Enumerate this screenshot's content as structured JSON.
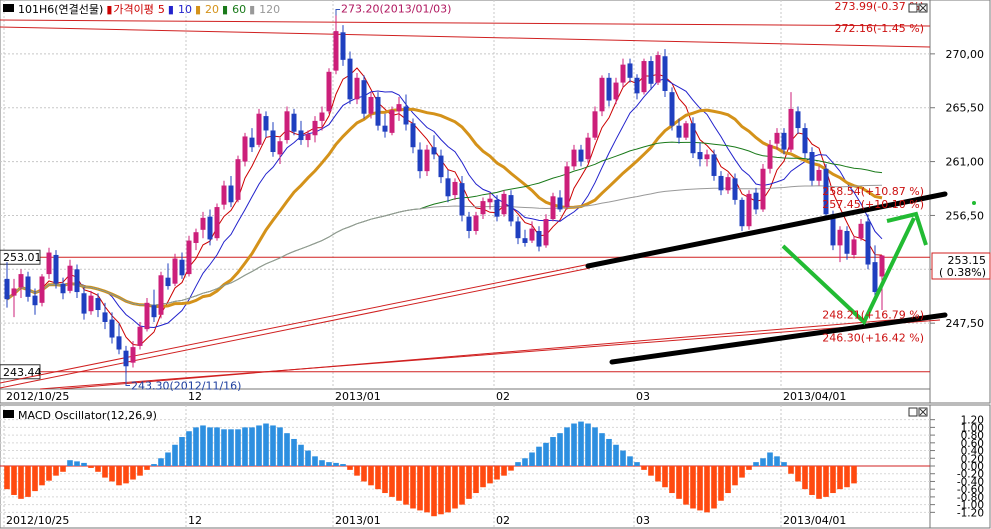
{
  "chart_data": [
    {
      "type": "candlestick",
      "instrument": "101H6(연결선물)",
      "legend": {
        "items": [
          {
            "label": "가격이평",
            "color": "#cc0000"
          },
          {
            "label": "5",
            "color": "#cc0000"
          },
          {
            "label": "10",
            "color": "#2222cc"
          },
          {
            "label": "20",
            "color": "#d4921a"
          },
          {
            "label": "60",
            "color": "#1a7a1a"
          },
          {
            "label": "120",
            "color": "#999999"
          }
        ]
      },
      "price_axis": {
        "ylim": [
          242.0,
          274.5
        ],
        "ticks": [
          247.5,
          252.0,
          256.5,
          261.0,
          265.5,
          270.0
        ],
        "tick_labels": [
          "247,50",
          "",
          "256,50",
          "261,00",
          "265,50",
          "270,00"
        ],
        "current_price": {
          "value": "253.15",
          "change": "( 0.38%)",
          "level": 253.15
        }
      },
      "x_axis": {
        "date_labels": [
          {
            "text": "2012/10/25",
            "index": 0
          },
          {
            "text": "12",
            "index": 26
          },
          {
            "text": "2013/01",
            "index": 47
          },
          {
            "text": "02",
            "index": 70
          },
          {
            "text": "03",
            "index": 90
          },
          {
            "text": "2013/04/01",
            "index": 111
          }
        ]
      },
      "candles": [
        {
          "o": 251.2,
          "h": 252.6,
          "l": 248.8,
          "c": 249.5
        },
        {
          "o": 249.8,
          "h": 251.2,
          "l": 248.0,
          "c": 250.4
        },
        {
          "o": 250.5,
          "h": 252.0,
          "l": 249.6,
          "c": 251.6
        },
        {
          "o": 251.4,
          "h": 251.8,
          "l": 249.3,
          "c": 249.7
        },
        {
          "o": 249.8,
          "h": 250.4,
          "l": 248.2,
          "c": 249.0
        },
        {
          "o": 249.2,
          "h": 251.6,
          "l": 248.9,
          "c": 251.4
        },
        {
          "o": 251.6,
          "h": 253.8,
          "l": 251.2,
          "c": 253.4
        },
        {
          "o": 253.2,
          "h": 253.6,
          "l": 250.4,
          "c": 250.8
        },
        {
          "o": 250.8,
          "h": 251.3,
          "l": 249.5,
          "c": 250.0
        },
        {
          "o": 250.2,
          "h": 252.8,
          "l": 250.0,
          "c": 252.3
        },
        {
          "o": 252.0,
          "h": 252.4,
          "l": 249.6,
          "c": 250.1
        },
        {
          "o": 250.0,
          "h": 250.5,
          "l": 247.8,
          "c": 248.3
        },
        {
          "o": 248.5,
          "h": 250.2,
          "l": 248.2,
          "c": 249.8
        },
        {
          "o": 249.6,
          "h": 250.0,
          "l": 248.0,
          "c": 248.6
        },
        {
          "o": 248.4,
          "h": 249.2,
          "l": 247.0,
          "c": 247.6
        },
        {
          "o": 247.8,
          "h": 248.4,
          "l": 245.8,
          "c": 246.3
        },
        {
          "o": 246.4,
          "h": 247.5,
          "l": 244.9,
          "c": 245.3
        },
        {
          "o": 245.2,
          "h": 245.6,
          "l": 243.3,
          "c": 243.9
        },
        {
          "o": 244.2,
          "h": 246.0,
          "l": 243.8,
          "c": 245.5
        },
        {
          "o": 245.6,
          "h": 247.6,
          "l": 245.3,
          "c": 247.2
        },
        {
          "o": 247.0,
          "h": 249.6,
          "l": 246.8,
          "c": 249.2
        },
        {
          "o": 249.0,
          "h": 250.3,
          "l": 247.6,
          "c": 248.0
        },
        {
          "o": 248.2,
          "h": 251.8,
          "l": 247.9,
          "c": 251.5
        },
        {
          "o": 251.3,
          "h": 252.5,
          "l": 250.3,
          "c": 250.6
        },
        {
          "o": 250.8,
          "h": 253.3,
          "l": 250.6,
          "c": 252.9
        },
        {
          "o": 252.8,
          "h": 253.4,
          "l": 251.2,
          "c": 251.5
        },
        {
          "o": 251.6,
          "h": 254.8,
          "l": 251.4,
          "c": 254.4
        },
        {
          "o": 254.2,
          "h": 255.4,
          "l": 253.6,
          "c": 255.1
        },
        {
          "o": 255.3,
          "h": 256.8,
          "l": 254.6,
          "c": 256.3
        },
        {
          "o": 256.4,
          "h": 257.0,
          "l": 254.0,
          "c": 254.5
        },
        {
          "o": 254.6,
          "h": 257.5,
          "l": 254.4,
          "c": 257.2
        },
        {
          "o": 257.4,
          "h": 259.4,
          "l": 257.0,
          "c": 259.0
        },
        {
          "o": 259.0,
          "h": 259.8,
          "l": 257.2,
          "c": 257.6
        },
        {
          "o": 257.8,
          "h": 261.5,
          "l": 257.6,
          "c": 261.2
        },
        {
          "o": 261.0,
          "h": 263.4,
          "l": 260.6,
          "c": 263.1
        },
        {
          "o": 263.0,
          "h": 263.8,
          "l": 261.8,
          "c": 262.2
        },
        {
          "o": 262.4,
          "h": 265.4,
          "l": 262.2,
          "c": 265.0
        },
        {
          "o": 264.8,
          "h": 265.2,
          "l": 263.0,
          "c": 263.6
        },
        {
          "o": 263.6,
          "h": 264.3,
          "l": 261.4,
          "c": 261.8
        },
        {
          "o": 261.6,
          "h": 263.0,
          "l": 260.8,
          "c": 262.7
        },
        {
          "o": 262.8,
          "h": 265.6,
          "l": 262.5,
          "c": 265.2
        },
        {
          "o": 265.0,
          "h": 265.4,
          "l": 263.2,
          "c": 263.5
        },
        {
          "o": 263.6,
          "h": 264.4,
          "l": 262.4,
          "c": 262.8
        },
        {
          "o": 262.8,
          "h": 263.6,
          "l": 262.2,
          "c": 263.3
        },
        {
          "o": 263.2,
          "h": 264.8,
          "l": 262.6,
          "c": 264.4
        },
        {
          "o": 264.4,
          "h": 265.6,
          "l": 263.6,
          "c": 265.1
        },
        {
          "o": 265.2,
          "h": 268.8,
          "l": 265.0,
          "c": 268.5
        },
        {
          "o": 268.6,
          "h": 273.2,
          "l": 268.3,
          "c": 271.9
        },
        {
          "o": 271.8,
          "h": 272.4,
          "l": 269.0,
          "c": 269.5
        },
        {
          "o": 269.6,
          "h": 270.2,
          "l": 265.8,
          "c": 266.2
        },
        {
          "o": 266.2,
          "h": 268.4,
          "l": 265.8,
          "c": 268.0
        },
        {
          "o": 267.8,
          "h": 268.2,
          "l": 264.6,
          "c": 265.0
        },
        {
          "o": 265.0,
          "h": 266.8,
          "l": 264.6,
          "c": 266.4
        },
        {
          "o": 266.4,
          "h": 266.8,
          "l": 263.6,
          "c": 264.0
        },
        {
          "o": 264.0,
          "h": 265.0,
          "l": 263.0,
          "c": 263.5
        },
        {
          "o": 263.4,
          "h": 265.6,
          "l": 263.2,
          "c": 265.3
        },
        {
          "o": 265.2,
          "h": 266.4,
          "l": 264.4,
          "c": 265.8
        },
        {
          "o": 265.6,
          "h": 266.6,
          "l": 263.6,
          "c": 264.1
        },
        {
          "o": 264.2,
          "h": 264.6,
          "l": 261.7,
          "c": 262.2
        },
        {
          "o": 262.0,
          "h": 262.6,
          "l": 259.6,
          "c": 260.2
        },
        {
          "o": 260.2,
          "h": 262.4,
          "l": 259.8,
          "c": 262.0
        },
        {
          "o": 262.2,
          "h": 263.2,
          "l": 261.2,
          "c": 261.6
        },
        {
          "o": 261.5,
          "h": 262.0,
          "l": 259.2,
          "c": 259.7
        },
        {
          "o": 259.6,
          "h": 260.3,
          "l": 257.6,
          "c": 258.1
        },
        {
          "o": 258.2,
          "h": 259.6,
          "l": 257.8,
          "c": 259.3
        },
        {
          "o": 259.2,
          "h": 259.8,
          "l": 256.0,
          "c": 256.5
        },
        {
          "o": 256.4,
          "h": 256.8,
          "l": 254.6,
          "c": 255.2
        },
        {
          "o": 255.2,
          "h": 256.8,
          "l": 254.9,
          "c": 256.5
        },
        {
          "o": 256.6,
          "h": 258.0,
          "l": 256.2,
          "c": 257.7
        },
        {
          "o": 257.6,
          "h": 258.4,
          "l": 257.0,
          "c": 257.9
        },
        {
          "o": 257.8,
          "h": 258.2,
          "l": 256.0,
          "c": 256.4
        },
        {
          "o": 256.6,
          "h": 258.6,
          "l": 256.4,
          "c": 258.3
        },
        {
          "o": 258.2,
          "h": 258.6,
          "l": 255.6,
          "c": 256.0
        },
        {
          "o": 256.0,
          "h": 256.4,
          "l": 254.1,
          "c": 254.6
        },
        {
          "o": 254.6,
          "h": 255.3,
          "l": 253.9,
          "c": 254.2
        },
        {
          "o": 254.4,
          "h": 256.0,
          "l": 254.2,
          "c": 255.4
        },
        {
          "o": 255.2,
          "h": 255.6,
          "l": 253.5,
          "c": 253.9
        },
        {
          "o": 254.0,
          "h": 256.6,
          "l": 253.8,
          "c": 256.2
        },
        {
          "o": 256.2,
          "h": 258.4,
          "l": 256.0,
          "c": 258.1
        },
        {
          "o": 258.0,
          "h": 258.6,
          "l": 256.8,
          "c": 257.0
        },
        {
          "o": 257.2,
          "h": 261.0,
          "l": 257.0,
          "c": 260.6
        },
        {
          "o": 260.6,
          "h": 262.4,
          "l": 260.3,
          "c": 262.0
        },
        {
          "o": 262.0,
          "h": 262.4,
          "l": 260.6,
          "c": 261.0
        },
        {
          "o": 261.2,
          "h": 263.4,
          "l": 260.9,
          "c": 263.0
        },
        {
          "o": 263.0,
          "h": 265.6,
          "l": 262.8,
          "c": 265.2
        },
        {
          "o": 265.2,
          "h": 268.2,
          "l": 264.8,
          "c": 268.0
        },
        {
          "o": 268.0,
          "h": 268.4,
          "l": 265.6,
          "c": 266.1
        },
        {
          "o": 266.2,
          "h": 268.0,
          "l": 265.8,
          "c": 267.6
        },
        {
          "o": 267.6,
          "h": 269.6,
          "l": 267.2,
          "c": 269.1
        },
        {
          "o": 269.2,
          "h": 269.6,
          "l": 267.6,
          "c": 268.0
        },
        {
          "o": 268.0,
          "h": 268.3,
          "l": 266.2,
          "c": 266.7
        },
        {
          "o": 266.8,
          "h": 269.6,
          "l": 266.6,
          "c": 269.4
        },
        {
          "o": 269.4,
          "h": 269.8,
          "l": 267.0,
          "c": 267.5
        },
        {
          "o": 267.6,
          "h": 270.2,
          "l": 267.4,
          "c": 269.9
        },
        {
          "o": 269.8,
          "h": 270.4,
          "l": 266.4,
          "c": 266.9
        },
        {
          "o": 266.8,
          "h": 267.2,
          "l": 263.6,
          "c": 264.0
        },
        {
          "o": 264.0,
          "h": 264.6,
          "l": 262.5,
          "c": 263.0
        },
        {
          "o": 263.0,
          "h": 264.4,
          "l": 262.8,
          "c": 264.2
        },
        {
          "o": 264.2,
          "h": 264.7,
          "l": 261.3,
          "c": 261.7
        },
        {
          "o": 261.8,
          "h": 262.6,
          "l": 260.6,
          "c": 261.2
        },
        {
          "o": 261.2,
          "h": 262.0,
          "l": 260.6,
          "c": 261.6
        },
        {
          "o": 261.6,
          "h": 262.0,
          "l": 259.4,
          "c": 259.8
        },
        {
          "o": 259.8,
          "h": 260.2,
          "l": 258.2,
          "c": 258.6
        },
        {
          "o": 258.6,
          "h": 260.0,
          "l": 258.3,
          "c": 259.7
        },
        {
          "o": 259.6,
          "h": 260.0,
          "l": 257.4,
          "c": 257.8
        },
        {
          "o": 257.8,
          "h": 258.0,
          "l": 255.2,
          "c": 255.6
        },
        {
          "o": 255.6,
          "h": 258.6,
          "l": 255.3,
          "c": 258.3
        },
        {
          "o": 258.4,
          "h": 258.8,
          "l": 256.6,
          "c": 257.0
        },
        {
          "o": 257.0,
          "h": 260.8,
          "l": 256.8,
          "c": 260.4
        },
        {
          "o": 260.4,
          "h": 262.8,
          "l": 260.0,
          "c": 262.4
        },
        {
          "o": 262.5,
          "h": 263.8,
          "l": 262.0,
          "c": 263.4
        },
        {
          "o": 263.4,
          "h": 263.8,
          "l": 261.6,
          "c": 262.0
        },
        {
          "o": 262.0,
          "h": 266.8,
          "l": 261.8,
          "c": 265.4
        },
        {
          "o": 265.2,
          "h": 265.6,
          "l": 263.3,
          "c": 263.8
        },
        {
          "o": 263.8,
          "h": 264.2,
          "l": 261.3,
          "c": 261.7
        },
        {
          "o": 261.8,
          "h": 262.2,
          "l": 259.0,
          "c": 259.4
        },
        {
          "o": 259.4,
          "h": 260.6,
          "l": 259.0,
          "c": 260.3
        },
        {
          "o": 260.4,
          "h": 260.8,
          "l": 256.1,
          "c": 256.6
        },
        {
          "o": 256.6,
          "h": 256.9,
          "l": 253.6,
          "c": 254.0
        },
        {
          "o": 254.0,
          "h": 255.6,
          "l": 252.6,
          "c": 255.3
        },
        {
          "o": 255.2,
          "h": 255.6,
          "l": 252.8,
          "c": 253.3
        },
        {
          "o": 253.2,
          "h": 254.8,
          "l": 252.9,
          "c": 254.5
        },
        {
          "o": 254.6,
          "h": 256.2,
          "l": 254.4,
          "c": 255.8
        },
        {
          "o": 256.0,
          "h": 256.6,
          "l": 252.0,
          "c": 252.4
        },
        {
          "o": 252.6,
          "h": 254.0,
          "l": 249.6,
          "c": 250.1
        },
        {
          "o": 251.4,
          "h": 253.2,
          "l": 248.6,
          "c": 253.15
        }
      ],
      "moving_averages": [
        {
          "name": "5",
          "period": 5,
          "color": "#cc0000"
        },
        {
          "name": "10",
          "period": 10,
          "color": "#2222cc"
        },
        {
          "name": "20",
          "period": 20,
          "color": "#d4921a"
        },
        {
          "name": "60",
          "period": 60,
          "color": "#1a7a1a"
        },
        {
          "name": "120",
          "period": 120,
          "color": "#999999"
        }
      ],
      "annotations": [
        {
          "text": "273.20(2013/01/03)",
          "index": 47,
          "price": 273.2,
          "type": "high"
        },
        {
          "text": "243.30(2012/11/16)",
          "index": 17,
          "price": 243.3,
          "type": "low"
        }
      ],
      "price_labels": [
        {
          "text": "273.99(-0.37 %)",
          "price": 273.99
        },
        {
          "text": "272.16(-1.45 %)",
          "price": 272.16
        },
        {
          "text": "258.54(+10.87 %)",
          "price": 258.54
        },
        {
          "text": "257.45(+10.10 %)",
          "price": 257.45
        },
        {
          "text": "248.21(+16.79 %)",
          "price": 248.21
        },
        {
          "text": "246.30(+16.42 %)",
          "price": 246.3
        }
      ],
      "left_level_labels": [
        {
          "text": "253.01",
          "price": 253.01
        },
        {
          "text": "243.44",
          "price": 243.44
        }
      ],
      "horizontal_levels": [
        253.01,
        243.44
      ]
    },
    {
      "type": "bar",
      "title": "MACD Oscillator(12,26,9)",
      "ylim": [
        -1.45,
        1.45
      ],
      "ticks": [
        1.2,
        1.0,
        0.8,
        0.6,
        0.4,
        0.2,
        0.0,
        -0.2,
        -0.4,
        -0.6,
        -0.8,
        -1.0,
        -1.2
      ],
      "tick_labels": [
        "1.20",
        "1.00",
        "0.80",
        "0.60",
        "0.40",
        "0.20",
        "0.00",
        "-0.20",
        "-0.40",
        "-0.60",
        "-0.80",
        "-1.00",
        "-1.20"
      ],
      "positive_color": "#2d8fe0",
      "negative_color": "#ff4a10",
      "values": [
        -0.6,
        -0.75,
        -0.85,
        -0.8,
        -0.65,
        -0.5,
        -0.38,
        -0.25,
        -0.15,
        0.15,
        0.12,
        0.08,
        -0.05,
        -0.15,
        -0.3,
        -0.4,
        -0.5,
        -0.45,
        -0.35,
        -0.25,
        -0.1,
        0.05,
        0.2,
        0.35,
        0.55,
        0.75,
        0.9,
        1.0,
        1.05,
        1.0,
        1.0,
        0.95,
        0.95,
        0.95,
        1.0,
        1.0,
        1.05,
        1.1,
        1.05,
        1.0,
        0.85,
        0.7,
        0.55,
        0.4,
        0.25,
        0.15,
        0.1,
        0.08,
        0.05,
        -0.1,
        -0.25,
        -0.4,
        -0.5,
        -0.6,
        -0.7,
        -0.8,
        -0.9,
        -1.0,
        -1.1,
        -1.15,
        -1.2,
        -1.3,
        -1.25,
        -1.2,
        -1.1,
        -1.0,
        -0.85,
        -0.7,
        -0.55,
        -0.45,
        -0.35,
        -0.25,
        -0.12,
        0.1,
        0.2,
        0.35,
        0.5,
        0.6,
        0.75,
        0.85,
        1.0,
        1.1,
        1.15,
        1.1,
        1.0,
        0.85,
        0.7,
        0.55,
        0.4,
        0.25,
        0.1,
        -0.1,
        -0.25,
        -0.4,
        -0.55,
        -0.7,
        -0.85,
        -1.0,
        -1.1,
        -1.15,
        -1.2,
        -1.1,
        -0.9,
        -0.7,
        -0.5,
        -0.3,
        -0.1,
        0.1,
        0.2,
        0.35,
        0.25,
        0.1,
        -0.2,
        -0.4,
        -0.6,
        -0.75,
        -0.85,
        -0.8,
        -0.7,
        -0.6,
        -0.55,
        -0.45
      ]
    }
  ]
}
